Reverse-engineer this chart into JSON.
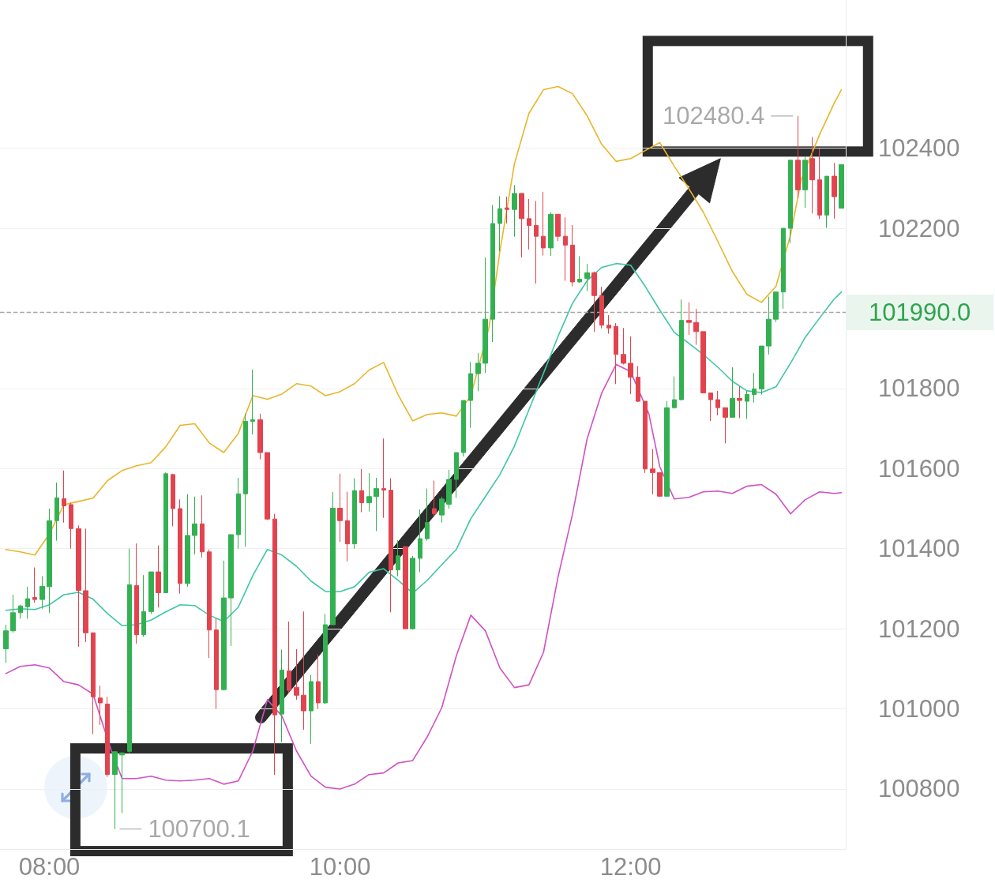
{
  "chart_data": {
    "type": "candlestick",
    "x": [
      7.7,
      7.75,
      7.8,
      7.85,
      7.9,
      7.95,
      8,
      8.05,
      8.1,
      8.15,
      8.2,
      8.25,
      8.3,
      8.35,
      8.4,
      8.45,
      8.5,
      8.55,
      8.6,
      8.65,
      8.7,
      8.75,
      8.8,
      8.85,
      8.9,
      8.95,
      9,
      9.05,
      9.1,
      9.15,
      9.2,
      9.25,
      9.3,
      9.35,
      9.4,
      9.45,
      9.5,
      9.55,
      9.6,
      9.65,
      9.7,
      9.75,
      9.8,
      9.85,
      9.9,
      9.95,
      10,
      10.05,
      10.1,
      10.15,
      10.2,
      10.25,
      10.3,
      10.35,
      10.4,
      10.45,
      10.5,
      10.55,
      10.6,
      10.65,
      10.7,
      10.75,
      10.8,
      10.85,
      10.9,
      10.95,
      11,
      11.05,
      11.1,
      11.15,
      11.2,
      11.25,
      11.3,
      11.35,
      11.4,
      11.45,
      11.5,
      11.55,
      11.6,
      11.65,
      11.7,
      11.75,
      11.8,
      11.85,
      11.9,
      11.95,
      12,
      12.05,
      12.1,
      12.15,
      12.2,
      12.25,
      12.3,
      12.35,
      12.4,
      12.45,
      12.5,
      12.55,
      12.6,
      12.65,
      12.7,
      12.75,
      12.8,
      12.85,
      12.9,
      12.95,
      13,
      13.05,
      13.1,
      13.15,
      13.2,
      13.25,
      13.3,
      13.35,
      13.4,
      13.45
    ],
    "ohlc": [
      [
        101150,
        101210,
        101115,
        101195
      ],
      [
        101195,
        101285,
        101190,
        101240
      ],
      [
        101240,
        101260,
        101225,
        101257
      ],
      [
        101255,
        101305,
        101225,
        101275
      ],
      [
        101278,
        101353,
        101265,
        101273
      ],
      [
        101273,
        101331,
        101250,
        101306
      ],
      [
        101305,
        101500,
        101240,
        101470
      ],
      [
        101470,
        101565,
        101420,
        101527
      ],
      [
        101525,
        101595,
        101465,
        101507
      ],
      [
        101510,
        101515,
        101400,
        101450
      ],
      [
        101450,
        101458,
        101155,
        101296
      ],
      [
        101295,
        101450,
        101167,
        101190
      ],
      [
        101190,
        101190,
        100937,
        101030
      ],
      [
        101027,
        101058,
        100960,
        101015
      ],
      [
        101012,
        101030,
        100830,
        100836
      ],
      [
        100836,
        100893,
        100700.1,
        100893
      ],
      [
        100885,
        100892,
        100740,
        100890
      ],
      [
        100894,
        101400,
        100890,
        101310
      ],
      [
        101308,
        101413,
        101163,
        101185
      ],
      [
        101185,
        101334,
        101180,
        101243
      ],
      [
        101243,
        101342,
        101237,
        101342
      ],
      [
        101342,
        101408,
        101253,
        101290
      ],
      [
        101290,
        101590,
        101290,
        101587
      ],
      [
        101585,
        101587,
        101456,
        101500
      ],
      [
        101500,
        101523,
        101288,
        101313
      ],
      [
        101313,
        101536,
        101305,
        101433
      ],
      [
        101433,
        101530,
        101386,
        101462
      ],
      [
        101462,
        101533,
        101378,
        101392
      ],
      [
        101392,
        101398,
        101127,
        101197
      ],
      [
        101197,
        101226,
        101000,
        101048
      ],
      [
        101048,
        101370,
        101046,
        101277
      ],
      [
        101277,
        101435,
        101157,
        101435
      ],
      [
        101435,
        101577,
        101400,
        101537
      ],
      [
        101537,
        101737,
        101405,
        101718
      ],
      [
        101718,
        101847,
        101685,
        101722
      ],
      [
        101722,
        101737,
        101623,
        101640
      ],
      [
        101640,
        101640,
        101472,
        101474
      ],
      [
        101474,
        101487,
        100835,
        100985
      ],
      [
        100987,
        101148,
        100917,
        101097
      ],
      [
        101095,
        101218,
        101040,
        101046
      ],
      [
        101054,
        101149,
        101023,
        101034
      ],
      [
        101034,
        101243,
        100948,
        100995
      ],
      [
        100995,
        101085,
        100913,
        101068
      ],
      [
        101068,
        101136,
        101000,
        101015
      ],
      [
        101015,
        101237,
        101012,
        101210
      ],
      [
        101210,
        101542,
        101210,
        101501
      ],
      [
        101501,
        101587,
        101417,
        101470
      ],
      [
        101470,
        101542,
        101368,
        101412
      ],
      [
        101412,
        101576,
        101400,
        101545
      ],
      [
        101545,
        101599,
        101491,
        101515
      ],
      [
        101515,
        101589,
        101493,
        101530
      ],
      [
        101530,
        101577,
        101444,
        101550
      ],
      [
        101550,
        101675,
        101477,
        101546
      ],
      [
        101546,
        101576,
        101241,
        101347
      ],
      [
        101347,
        101421,
        101331,
        101382
      ],
      [
        101405,
        101405,
        101200,
        101200
      ],
      [
        101200,
        101382,
        101198,
        101376
      ],
      [
        101376,
        101498,
        101341,
        101425
      ],
      [
        101425,
        101550,
        101420,
        101465
      ],
      [
        101500,
        101570,
        101480,
        101487
      ],
      [
        101484,
        101530,
        101465,
        101524
      ],
      [
        101511,
        101597,
        101500,
        101573
      ],
      [
        101573,
        101640,
        101527,
        101640
      ],
      [
        101640,
        101770,
        101630,
        101770
      ],
      [
        101770,
        101866,
        101702,
        101837
      ],
      [
        101837,
        101888,
        101793,
        101863
      ],
      [
        101863,
        102127,
        101839,
        101973
      ],
      [
        101973,
        102258,
        101916,
        102212
      ],
      [
        102212,
        102280,
        102142,
        102249
      ],
      [
        102251,
        102279,
        102212,
        102247
      ],
      [
        102247,
        102308,
        102179,
        102287
      ],
      [
        102287,
        102287,
        102127,
        102224
      ],
      [
        102224,
        102273,
        102147,
        102207
      ],
      [
        102207,
        102268,
        102062,
        102180
      ],
      [
        102180,
        102291,
        102132,
        102151
      ],
      [
        102151,
        102240,
        102131,
        102235
      ],
      [
        102235,
        102235,
        102168,
        102180
      ],
      [
        102180,
        102227,
        102069,
        102158
      ],
      [
        102158,
        102208,
        102055,
        102066
      ],
      [
        102066,
        102130,
        102064,
        102073
      ],
      [
        102075,
        102111,
        102043,
        102089
      ],
      [
        102089,
        102092,
        101941,
        102032
      ],
      [
        102032,
        102054,
        101950,
        101958
      ],
      [
        101958,
        101983,
        101937,
        101951
      ],
      [
        101955,
        101963,
        101811,
        101885
      ],
      [
        101885,
        101951,
        101860,
        101863
      ],
      [
        101863,
        101930,
        101786,
        101828
      ],
      [
        101828,
        101856,
        101766,
        101768
      ],
      [
        101768,
        101768,
        101589,
        101599
      ],
      [
        101599,
        101649,
        101536,
        101590
      ],
      [
        101590,
        101590,
        101529,
        101531
      ],
      [
        101531,
        101768,
        101529,
        101752
      ],
      [
        101752,
        101830,
        101750,
        101772
      ],
      [
        101772,
        102022,
        101770,
        101970
      ],
      [
        101970,
        102015,
        101934,
        101965
      ],
      [
        101965,
        101999,
        101909,
        101942
      ],
      [
        101942,
        101942,
        101789,
        101789
      ],
      [
        101789,
        101789,
        101719,
        101772
      ],
      [
        101772,
        101794,
        101733,
        101752
      ],
      [
        101752,
        101752,
        101663,
        101728
      ],
      [
        101728,
        101853,
        101728,
        101775
      ],
      [
        101775,
        101806,
        101726,
        101770
      ],
      [
        101768,
        101794,
        101724,
        101785
      ],
      [
        101785,
        101839,
        101765,
        101799
      ],
      [
        101799,
        101906,
        101785,
        101906
      ],
      [
        101906,
        102029,
        101885,
        101973
      ],
      [
        101973,
        102041,
        101966,
        102041
      ],
      [
        102041,
        102200,
        101999,
        102200
      ],
      [
        102200,
        102370,
        102163,
        102370
      ],
      [
        102370,
        102480.4,
        102275,
        102296
      ],
      [
        102296,
        102380,
        102251,
        102370
      ],
      [
        102374,
        102428,
        102237,
        102321
      ],
      [
        102321,
        102399,
        102223,
        102233
      ],
      [
        102233,
        102330,
        102201,
        102330
      ],
      [
        102330,
        102363,
        102224,
        102279
      ],
      [
        102250,
        102359,
        102250,
        102359
      ]
    ],
    "series": [
      {
        "type": "line",
        "color": "#e7b62a",
        "x": [
          7.7,
          7.8,
          7.9,
          8,
          8.1,
          8.2,
          8.3,
          8.4,
          8.5,
          8.6,
          8.7,
          8.8,
          8.9,
          9,
          9.1,
          9.2,
          9.3,
          9.4,
          9.5,
          9.6,
          9.7,
          9.8,
          9.9,
          10,
          10.1,
          10.2,
          10.3,
          10.4,
          10.5,
          10.6,
          10.7,
          10.8,
          10.9,
          11.025,
          11.1,
          11.2,
          11.3,
          11.4,
          11.5,
          11.6,
          11.7,
          11.8,
          11.9,
          12,
          12.1,
          12.2,
          12.3,
          12.4,
          12.5,
          12.6,
          12.7,
          12.8,
          12.9,
          13,
          13.1,
          13.175,
          13.3,
          13.4,
          13.45
        ],
        "values": [
          101398,
          101392,
          101384,
          101437,
          101510,
          101518,
          101526,
          101570,
          101595,
          101607,
          101615,
          101654,
          101708,
          101712,
          101664,
          101640,
          101688,
          101782,
          101773,
          101786,
          101812,
          101806,
          101782,
          101792,
          101812,
          101846,
          101865,
          101784,
          101719,
          101735,
          101739,
          101731,
          101782,
          101952,
          102142,
          102361,
          102487,
          102546,
          102554,
          102536,
          102481,
          102410,
          102367,
          102374,
          102394,
          102414,
          102355,
          102299,
          102240,
          102167,
          102092,
          102035,
          102015,
          102055,
          102183,
          102323,
          102434,
          102512,
          102546
        ]
      },
      {
        "type": "line",
        "color": "#3ec6a6",
        "x": [
          7.7,
          7.8,
          7.9,
          8,
          8.1,
          8.2,
          8.3,
          8.4,
          8.5,
          8.6,
          8.7,
          8.8,
          8.9,
          9,
          9.1,
          9.2,
          9.3,
          9.4,
          9.5,
          9.6,
          9.7,
          9.8,
          9.9,
          10,
          10.1,
          10.2,
          10.3,
          10.4,
          10.5,
          10.6,
          10.7,
          10.8,
          10.9,
          11,
          11.1,
          11.2,
          11.3,
          11.4,
          11.5,
          11.6,
          11.7,
          11.8,
          11.9,
          12,
          12.1,
          12.2,
          12.3,
          12.4,
          12.5,
          12.6,
          12.7,
          12.8,
          12.9,
          13,
          13.1,
          13.2,
          13.3,
          13.4,
          13.45
        ],
        "values": [
          101246,
          101250,
          101248,
          101260,
          101285,
          101291,
          101274,
          101238,
          101208,
          101210,
          101222,
          101242,
          101260,
          101258,
          101234,
          101218,
          101254,
          101333,
          101398,
          101384,
          101356,
          101319,
          101293,
          101293,
          101305,
          101341,
          101350,
          101321,
          101289,
          101321,
          101360,
          101398,
          101475,
          101530,
          101585,
          101656,
          101747,
          101838,
          101930,
          102013,
          102069,
          102102,
          102112,
          102108,
          102055,
          101996,
          101940,
          101913,
          101885,
          101853,
          101818,
          101794,
          101790,
          101804,
          101863,
          101927,
          101976,
          102023,
          102041
        ]
      },
      {
        "type": "line",
        "color": "#d051c3",
        "x": [
          7.7,
          7.8,
          7.9,
          8,
          8.1,
          8.2,
          8.3,
          8.425,
          8.5,
          8.6,
          8.7,
          8.8,
          8.9,
          9,
          9.1,
          9.2,
          9.3,
          9.4,
          9.5,
          9.6,
          9.7,
          9.8,
          9.9,
          10,
          10.1,
          10.2,
          10.3,
          10.4,
          10.5,
          10.6,
          10.7,
          10.8,
          10.9,
          11,
          11.1,
          11.2,
          11.3,
          11.4,
          11.5,
          11.6,
          11.7,
          11.8,
          11.9,
          12,
          12.125,
          12.2,
          12.3,
          12.4,
          12.5,
          12.6,
          12.7,
          12.8,
          12.9,
          13,
          13.1,
          13.2,
          13.3,
          13.4,
          13.45
        ],
        "values": [
          101088,
          101106,
          101110,
          101102,
          101068,
          101060,
          101037,
          100897,
          100826,
          100826,
          100832,
          100822,
          100820,
          100822,
          100826,
          100812,
          100820,
          100895,
          101023,
          100982,
          100895,
          100832,
          100804,
          100800,
          100812,
          100836,
          100840,
          100865,
          100871,
          100930,
          101003,
          101132,
          101234,
          101195,
          101102,
          101053,
          101060,
          101141,
          101329,
          101487,
          101674,
          101788,
          101860,
          101842,
          101737,
          101605,
          101524,
          101528,
          101542,
          101544,
          101538,
          101556,
          101560,
          101536,
          101487,
          101522,
          101542,
          101538,
          101540
        ]
      }
    ],
    "xlim": [
      7.66,
      13.48
    ],
    "xticks": [
      {
        "value": 8,
        "label": "08:00"
      },
      {
        "value": 10,
        "label": "10:00"
      },
      {
        "value": 12,
        "label": "12:00"
      }
    ],
    "ylim": [
      100650,
      102770
    ],
    "yticks": [
      100800,
      101000,
      101200,
      101400,
      101600,
      101800,
      102200,
      102400
    ],
    "grid": "y",
    "marker": "none",
    "ref_lines": [
      {
        "axis": "y",
        "value": 101990,
        "label": "101990.0",
        "color": "#a6a6a6",
        "line_style": "dashed"
      }
    ],
    "annotations": [
      {
        "text": "102480.4",
        "x": 13.15,
        "y": 102480.4
      },
      {
        "text": "100700.1",
        "x": 8.45,
        "y": 100700.1
      }
    ]
  }
}
